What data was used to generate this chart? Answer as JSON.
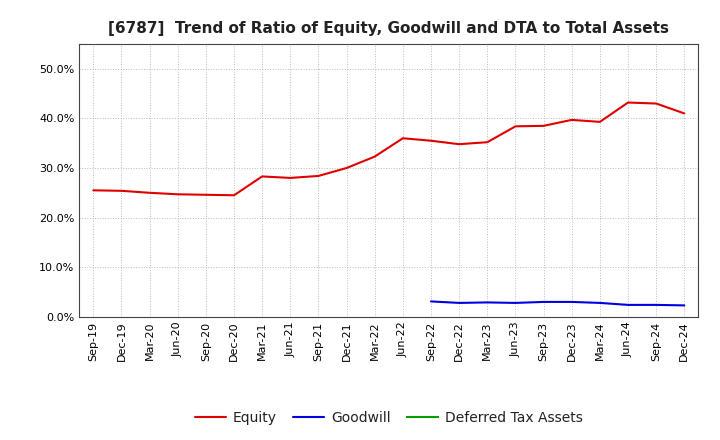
{
  "title": "[6787]  Trend of Ratio of Equity, Goodwill and DTA to Total Assets",
  "x_labels": [
    "Sep-19",
    "Dec-19",
    "Mar-20",
    "Jun-20",
    "Sep-20",
    "Dec-20",
    "Mar-21",
    "Jun-21",
    "Sep-21",
    "Dec-21",
    "Mar-22",
    "Jun-22",
    "Sep-22",
    "Dec-22",
    "Mar-23",
    "Jun-23",
    "Sep-23",
    "Dec-23",
    "Mar-24",
    "Jun-24",
    "Sep-24",
    "Dec-24"
  ],
  "equity": [
    0.255,
    0.254,
    0.25,
    0.247,
    0.246,
    0.245,
    0.283,
    0.28,
    0.284,
    0.3,
    0.323,
    0.36,
    0.355,
    0.348,
    0.352,
    0.384,
    0.385,
    0.397,
    0.393,
    0.432,
    0.43,
    0.41
  ],
  "goodwill": [
    null,
    null,
    null,
    null,
    null,
    null,
    null,
    null,
    null,
    null,
    null,
    null,
    0.031,
    0.028,
    0.029,
    0.028,
    0.03,
    0.03,
    0.028,
    0.024,
    0.024,
    0.023
  ],
  "dta": [
    null,
    null,
    null,
    null,
    null,
    null,
    null,
    null,
    null,
    null,
    null,
    null,
    null,
    null,
    null,
    null,
    null,
    null,
    null,
    null,
    null,
    null
  ],
  "equity_color": "#e00000",
  "goodwill_color": "#0000e0",
  "dta_color": "#00a000",
  "ylim": [
    0.0,
    0.55
  ],
  "yticks": [
    0.0,
    0.1,
    0.2,
    0.3,
    0.4,
    0.5
  ],
  "background_color": "#ffffff",
  "plot_bg_color": "#ffffff",
  "grid_color": "#aaaaaa",
  "title_fontsize": 11,
  "tick_fontsize": 8,
  "legend_fontsize": 10,
  "legend_labels": [
    "Equity",
    "Goodwill",
    "Deferred Tax Assets"
  ]
}
